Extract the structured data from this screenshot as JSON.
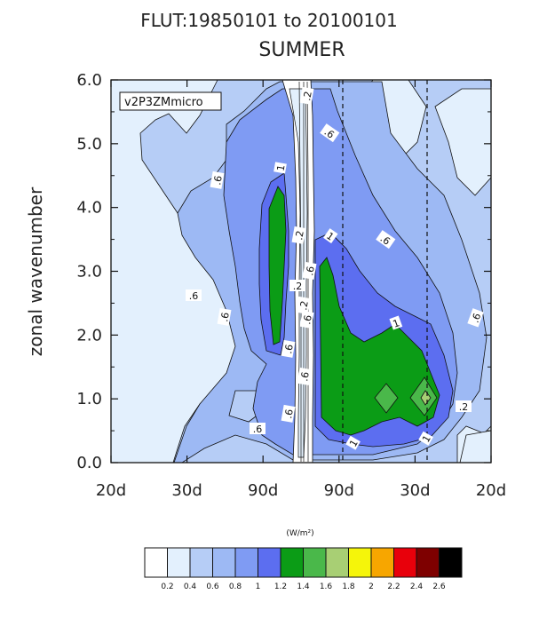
{
  "chart_data": {
    "type": "heatmap",
    "title": "FLUT:19850101 to 20100101",
    "subtitle": "SUMMER",
    "xlabel": "",
    "ylabel": "zonal wavenumber",
    "legend_label": "v2P3ZMmicro",
    "units": "(W/m²)",
    "x_tick_labels": [
      "20d",
      "30d",
      "90d",
      "90d",
      "30d",
      "20d"
    ],
    "y_tick_labels": [
      "0.0",
      "1.0",
      "2.0",
      "3.0",
      "4.0",
      "5.0",
      "6.0"
    ],
    "ylim": [
      0,
      6
    ],
    "grid": false,
    "contour_levels": [
      "0.2",
      "0.4",
      "0.6",
      "0.8",
      "1",
      "1.2",
      "1.4",
      "1.6",
      "1.8",
      "2",
      "2.2",
      "2.4",
      "2.6"
    ],
    "colors": [
      "#ffffff",
      "#e3f0fd",
      "#b6cdf6",
      "#9db9f4",
      "#7f9bf3",
      "#5c6ef0",
      "#0b9c16",
      "#4ab84a",
      "#a8cf74",
      "#f5f50a",
      "#f7a600",
      "#e8000b",
      "#7e0000",
      "#000000"
    ],
    "contour_labels": [
      ".2",
      ".6",
      "1",
      ".6",
      ".2",
      ".2",
      ".6",
      ".2",
      "1",
      ".6",
      ".6",
      ".6",
      "1",
      ".6",
      ".6",
      ".6",
      ".6",
      ".2",
      ".6",
      ".6",
      "1",
      "1"
    ],
    "regions": [
      {
        "name": "background",
        "level": 0.3
      },
      {
        "name": "band-0.4-0.6",
        "level": 0.5
      },
      {
        "name": "band-0.6-0.8",
        "level": 0.7
      },
      {
        "name": "band-0.8-1",
        "level": 0.9
      },
      {
        "name": "band-1-1.2",
        "level": 1.1
      },
      {
        "name": "band-1.2-1.4",
        "level": 1.3
      },
      {
        "name": "band-1.4-1.6",
        "level": 1.5
      }
    ]
  }
}
